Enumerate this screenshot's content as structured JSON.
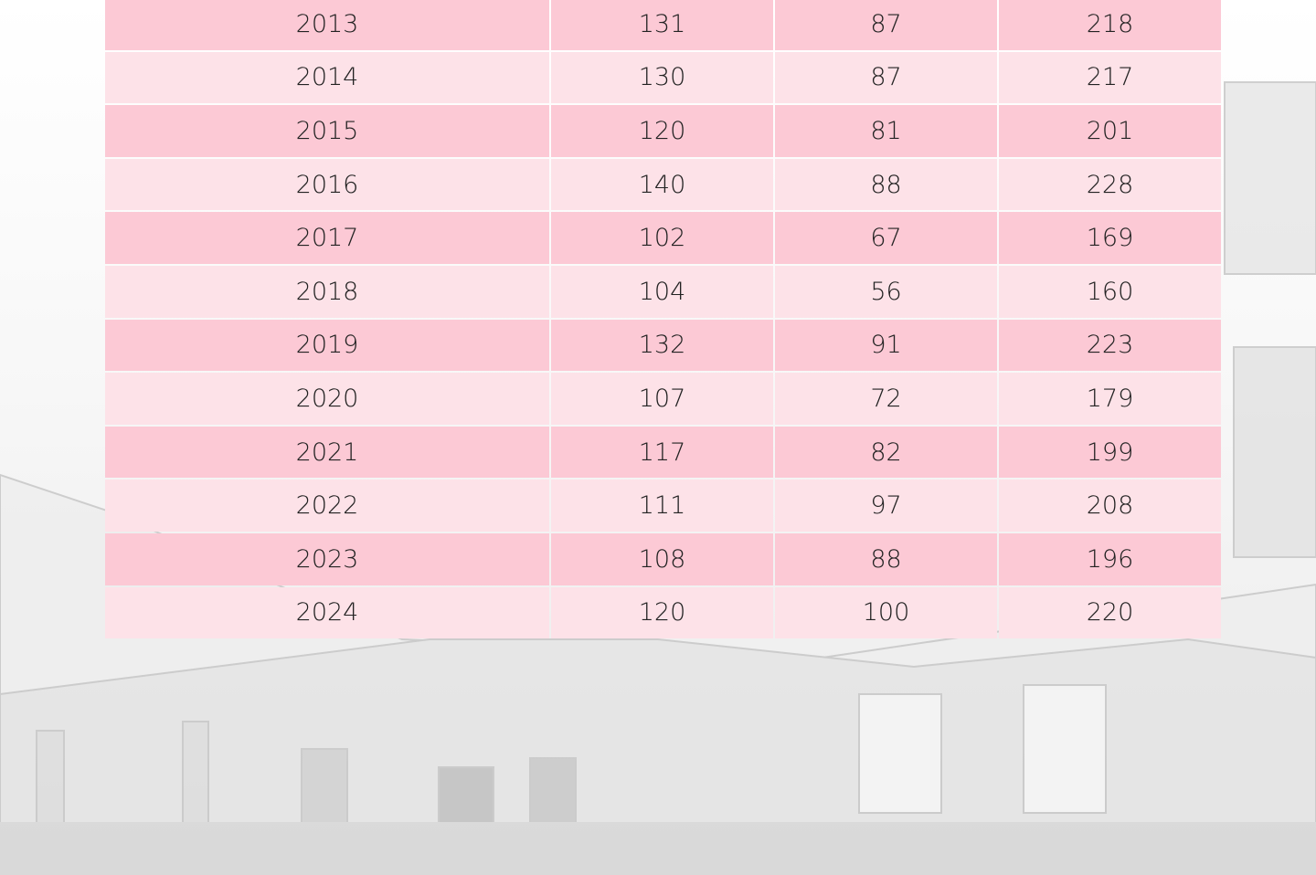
{
  "table": {
    "rows": [
      [
        "2013",
        "131",
        "87",
        "218"
      ],
      [
        "2014",
        "130",
        "87",
        "217"
      ],
      [
        "2015",
        "120",
        "81",
        "201"
      ],
      [
        "2016",
        "140",
        "88",
        "228"
      ],
      [
        "2017",
        "102",
        "67",
        "169"
      ],
      [
        "2018",
        "104",
        "56",
        "160"
      ],
      [
        "2019",
        "132",
        "91",
        "223"
      ],
      [
        "2020",
        "107",
        "72",
        "179"
      ],
      [
        "2021",
        "117",
        "82",
        "199"
      ],
      [
        "2022",
        "111",
        "97",
        "208"
      ],
      [
        "2023",
        "108",
        "88",
        "196"
      ],
      [
        "2024",
        "120",
        "100",
        "220"
      ]
    ]
  }
}
